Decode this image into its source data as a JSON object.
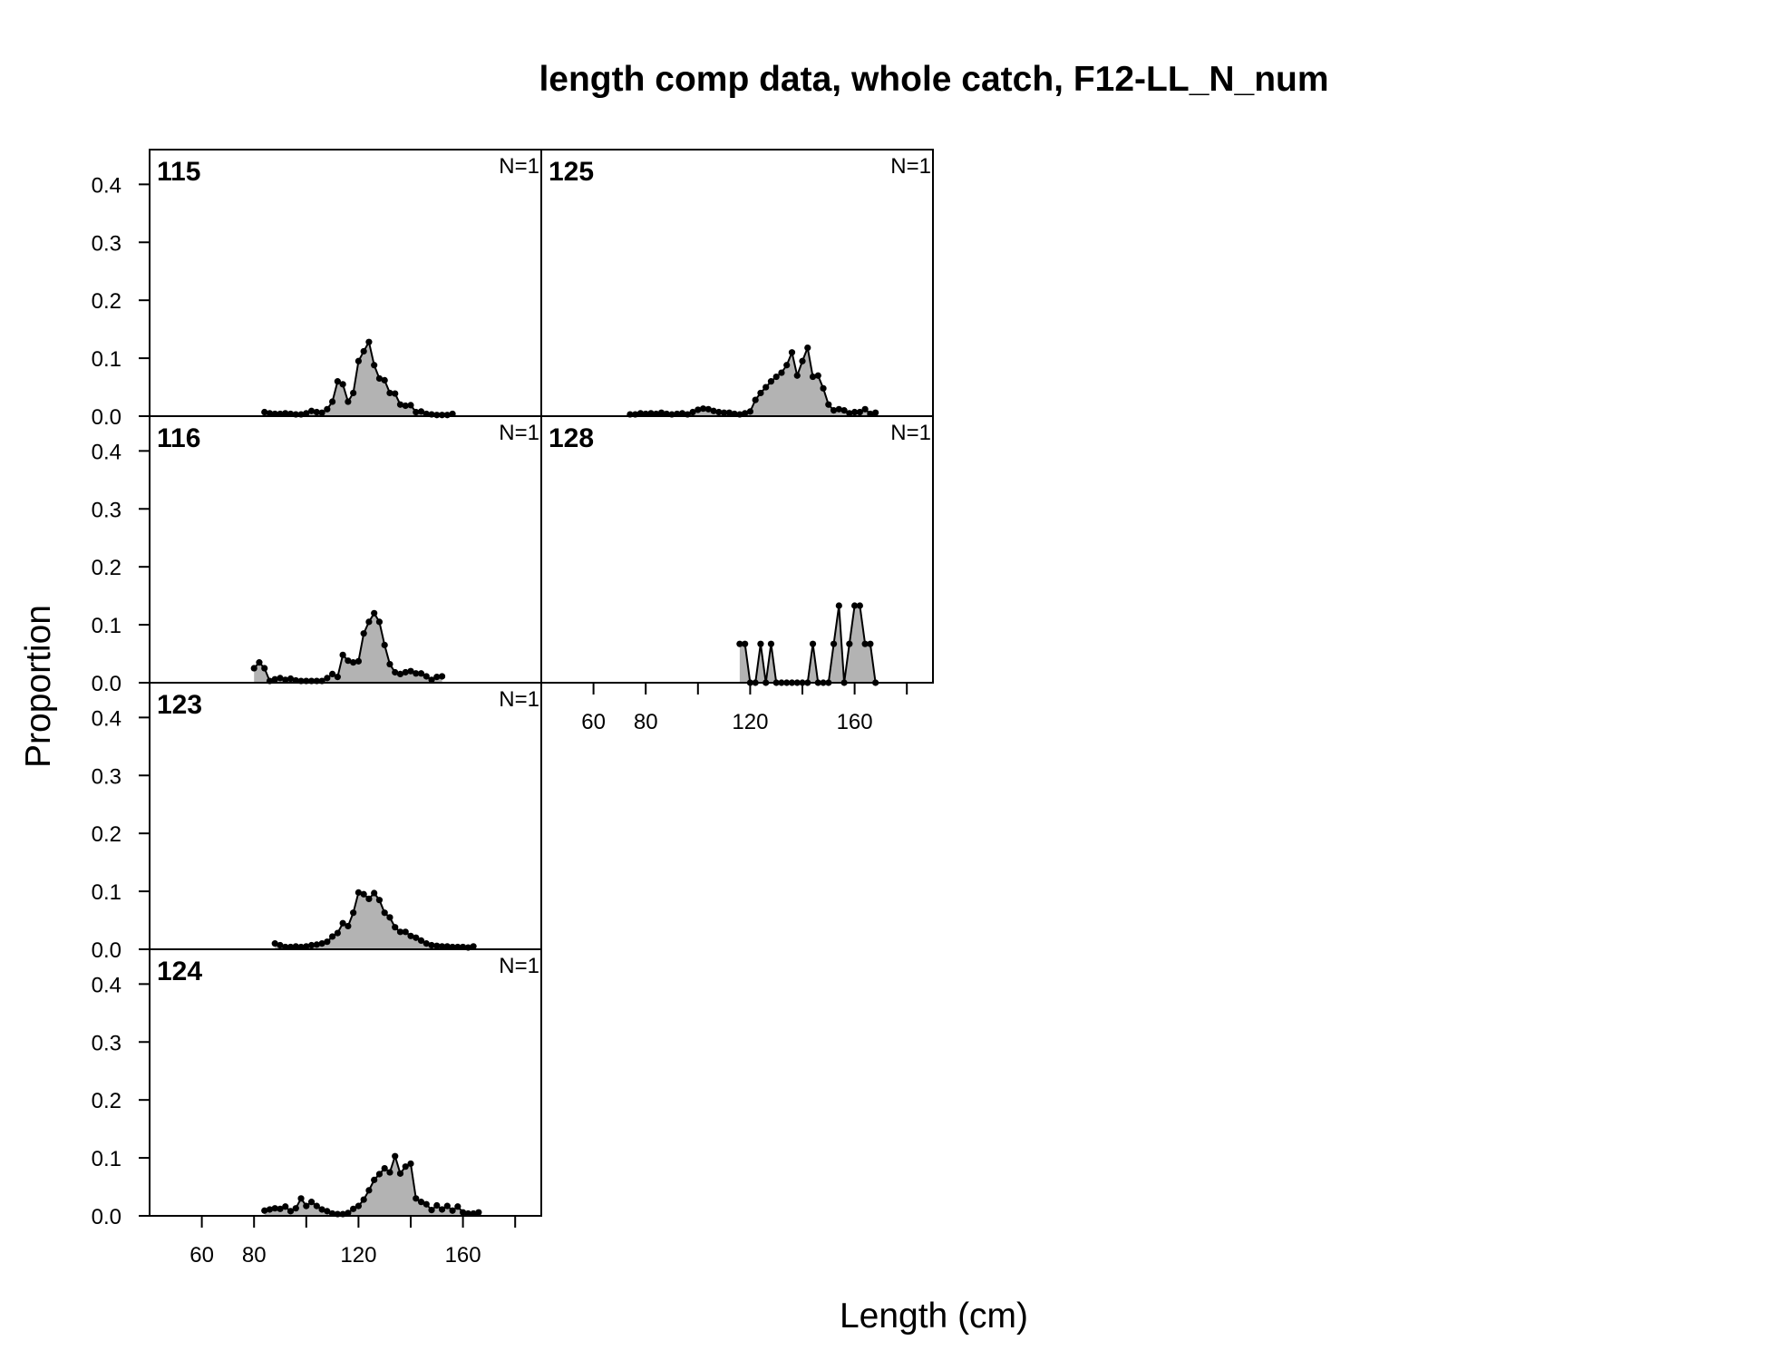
{
  "chart_data": {
    "type": "area",
    "title": "length comp data, whole catch, F12-LL_N_num",
    "xlabel": "Length (cm)",
    "ylabel": "Proportion",
    "xlim": [
      40,
      190
    ],
    "ylim": [
      0,
      0.46
    ],
    "x_ticks": [
      60,
      80,
      120,
      160
    ],
    "y_ticks": [
      "0.0",
      "0.1",
      "0.2",
      "0.3",
      "0.4"
    ],
    "fill_color": "#b3b3b3",
    "line_color": "#000000",
    "layout": "4 rows x 2 columns, column-major",
    "panels": [
      {
        "label": "115",
        "n_label": "N=1",
        "x": [
          84,
          86,
          88,
          90,
          92,
          94,
          96,
          98,
          100,
          102,
          104,
          106,
          108,
          110,
          112,
          114,
          116,
          118,
          120,
          122,
          124,
          126,
          128,
          130,
          132,
          134,
          136,
          138,
          140,
          142,
          144,
          146,
          148,
          150,
          152,
          154,
          156
        ],
        "y": [
          0.007,
          0.005,
          0.004,
          0.004,
          0.005,
          0.004,
          0.003,
          0.003,
          0.005,
          0.009,
          0.007,
          0.006,
          0.012,
          0.025,
          0.06,
          0.055,
          0.025,
          0.04,
          0.095,
          0.112,
          0.128,
          0.088,
          0.065,
          0.062,
          0.04,
          0.039,
          0.02,
          0.018,
          0.019,
          0.007,
          0.008,
          0.004,
          0.003,
          0.002,
          0.002,
          0.002,
          0.004
        ]
      },
      {
        "label": "116",
        "n_label": "N=1",
        "x": [
          80,
          82,
          84,
          86,
          88,
          90,
          92,
          94,
          96,
          98,
          100,
          102,
          104,
          106,
          108,
          110,
          112,
          114,
          116,
          118,
          120,
          122,
          124,
          126,
          128,
          130,
          132,
          134,
          136,
          138,
          140,
          142,
          144,
          146,
          148,
          150,
          152
        ],
        "y": [
          0.025,
          0.035,
          0.025,
          0.003,
          0.006,
          0.008,
          0.005,
          0.007,
          0.004,
          0.003,
          0.003,
          0.003,
          0.003,
          0.003,
          0.008,
          0.015,
          0.01,
          0.048,
          0.038,
          0.035,
          0.037,
          0.085,
          0.105,
          0.12,
          0.105,
          0.065,
          0.032,
          0.018,
          0.015,
          0.018,
          0.02,
          0.016,
          0.016,
          0.011,
          0.005,
          0.01,
          0.011
        ]
      },
      {
        "label": "123",
        "n_label": "N=1",
        "x": [
          88,
          90,
          92,
          94,
          96,
          98,
          100,
          102,
          104,
          106,
          108,
          110,
          112,
          114,
          116,
          118,
          120,
          122,
          124,
          126,
          128,
          130,
          132,
          134,
          136,
          138,
          140,
          142,
          144,
          146,
          148,
          150,
          152,
          154,
          156,
          158,
          160,
          162,
          164
        ],
        "y": [
          0.01,
          0.007,
          0.004,
          0.004,
          0.005,
          0.004,
          0.005,
          0.007,
          0.008,
          0.01,
          0.013,
          0.022,
          0.028,
          0.045,
          0.04,
          0.063,
          0.098,
          0.095,
          0.087,
          0.097,
          0.085,
          0.063,
          0.055,
          0.038,
          0.03,
          0.03,
          0.023,
          0.02,
          0.015,
          0.01,
          0.007,
          0.006,
          0.005,
          0.005,
          0.004,
          0.004,
          0.004,
          0.003,
          0.005
        ]
      },
      {
        "label": "124",
        "n_label": "N=1",
        "x": [
          84,
          86,
          88,
          90,
          92,
          94,
          96,
          98,
          100,
          102,
          104,
          106,
          108,
          110,
          112,
          114,
          116,
          118,
          120,
          122,
          124,
          126,
          128,
          130,
          132,
          134,
          136,
          138,
          140,
          142,
          144,
          146,
          148,
          150,
          152,
          154,
          156,
          158,
          160,
          162,
          164,
          166
        ],
        "y": [
          0.009,
          0.011,
          0.013,
          0.012,
          0.016,
          0.008,
          0.013,
          0.03,
          0.017,
          0.024,
          0.017,
          0.011,
          0.008,
          0.004,
          0.003,
          0.003,
          0.005,
          0.012,
          0.017,
          0.028,
          0.044,
          0.062,
          0.072,
          0.082,
          0.075,
          0.103,
          0.073,
          0.085,
          0.09,
          0.03,
          0.024,
          0.02,
          0.01,
          0.018,
          0.011,
          0.017,
          0.009,
          0.016,
          0.006,
          0.004,
          0.004,
          0.006
        ]
      },
      {
        "label": "125",
        "n_label": "N=1",
        "x": [
          74,
          76,
          78,
          80,
          82,
          84,
          86,
          88,
          90,
          92,
          94,
          96,
          98,
          100,
          102,
          104,
          106,
          108,
          110,
          112,
          114,
          116,
          118,
          120,
          122,
          124,
          126,
          128,
          130,
          132,
          134,
          136,
          138,
          140,
          142,
          144,
          146,
          148,
          150,
          152,
          154,
          156,
          158,
          160,
          162,
          164,
          166,
          168
        ],
        "y": [
          0.003,
          0.003,
          0.005,
          0.004,
          0.005,
          0.004,
          0.006,
          0.004,
          0.003,
          0.004,
          0.005,
          0.003,
          0.007,
          0.011,
          0.013,
          0.012,
          0.009,
          0.007,
          0.006,
          0.006,
          0.004,
          0.003,
          0.005,
          0.008,
          0.028,
          0.04,
          0.05,
          0.06,
          0.068,
          0.075,
          0.088,
          0.11,
          0.07,
          0.095,
          0.118,
          0.068,
          0.07,
          0.048,
          0.02,
          0.01,
          0.012,
          0.01,
          0.005,
          0.007,
          0.007,
          0.012,
          0.004,
          0.006
        ]
      },
      {
        "label": "128",
        "n_label": "N=1",
        "x": [
          116,
          118,
          120,
          122,
          124,
          126,
          128,
          130,
          132,
          134,
          136,
          138,
          140,
          142,
          144,
          146,
          148,
          150,
          152,
          154,
          156,
          158,
          160,
          162,
          164,
          166,
          168
        ],
        "y": [
          0.067,
          0.067,
          0,
          0,
          0.067,
          0,
          0.067,
          0,
          0,
          0,
          0,
          0,
          0,
          0,
          0.067,
          0,
          0,
          0,
          0.067,
          0.133,
          0,
          0.067,
          0.133,
          0.133,
          0.067,
          0.067,
          0
        ]
      }
    ]
  }
}
